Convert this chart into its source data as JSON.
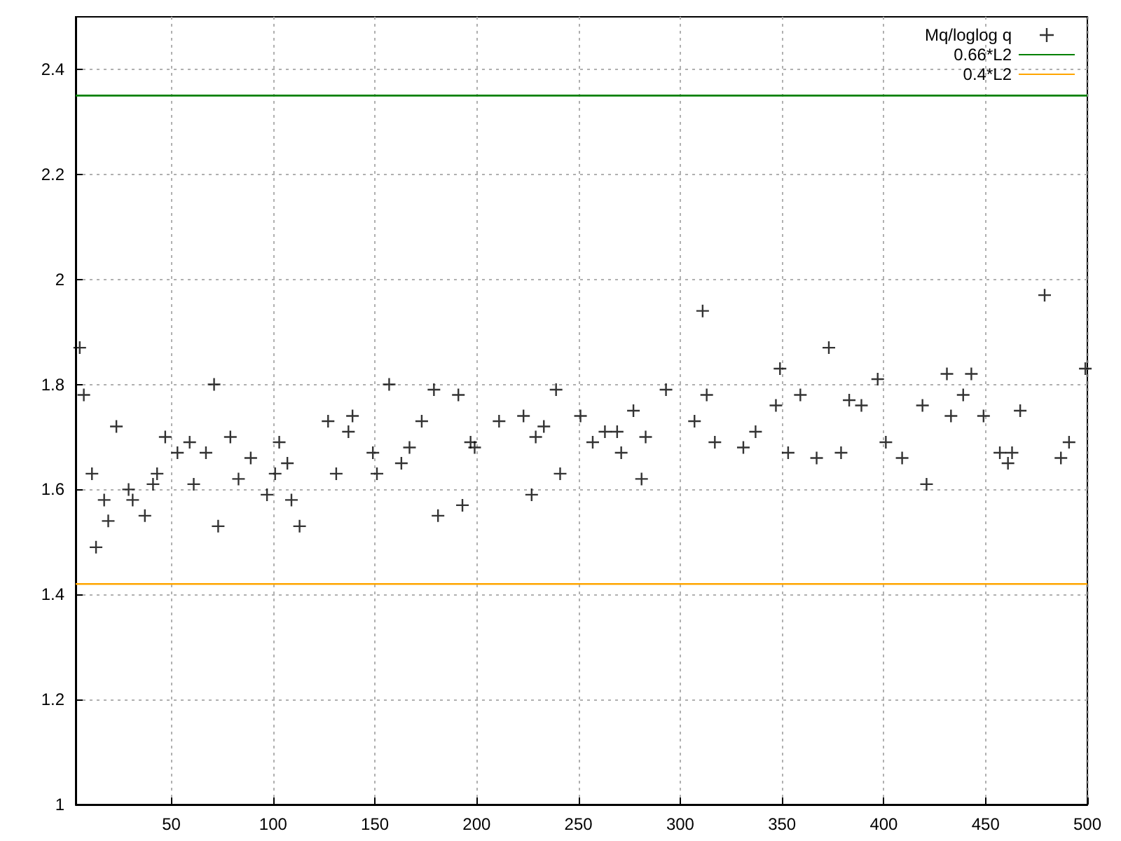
{
  "chart_data": {
    "type": "scatter",
    "xlim": [
      3,
      500
    ],
    "xticks": [
      50,
      100,
      150,
      200,
      250,
      300,
      350,
      400,
      450,
      500
    ],
    "ylim": [
      1,
      2.5
    ],
    "yticks": [
      1,
      1.2,
      1.4,
      1.6,
      1.8,
      2,
      2.2,
      2.4
    ],
    "grid": true,
    "legend": "top right",
    "series": [
      {
        "name": "Mq/loglog q",
        "marker": "cross",
        "color": "#000000",
        "x": [
          5,
          7,
          11,
          13,
          17,
          19,
          23,
          29,
          31,
          37,
          41,
          43,
          47,
          53,
          59,
          61,
          67,
          71,
          73,
          79,
          83,
          89,
          97,
          101,
          103,
          107,
          109,
          113,
          127,
          131,
          137,
          139,
          149,
          151,
          157,
          163,
          167,
          173,
          179,
          181,
          191,
          193,
          197,
          199,
          211,
          223,
          227,
          229,
          233,
          239,
          241,
          251,
          257,
          263,
          269,
          271,
          277,
          281,
          283,
          293,
          307,
          311,
          313,
          317,
          331,
          337,
          347,
          349,
          353,
          359,
          367,
          373,
          379,
          383,
          389,
          397,
          401,
          409,
          419,
          421,
          431,
          433,
          439,
          443,
          449,
          457,
          461,
          463,
          467,
          479,
          487,
          491,
          499
        ],
        "values": [
          1.87,
          1.78,
          1.63,
          1.49,
          1.58,
          1.54,
          1.72,
          1.6,
          1.58,
          1.55,
          1.61,
          1.63,
          1.7,
          1.67,
          1.69,
          1.61,
          1.67,
          1.8,
          1.53,
          1.7,
          1.62,
          1.66,
          1.59,
          1.63,
          1.69,
          1.65,
          1.58,
          1.53,
          1.73,
          1.63,
          1.71,
          1.74,
          1.67,
          1.63,
          1.8,
          1.65,
          1.68,
          1.73,
          1.79,
          1.55,
          1.78,
          1.57,
          1.69,
          1.68,
          1.73,
          1.74,
          1.59,
          1.7,
          1.72,
          1.79,
          1.63,
          1.74,
          1.69,
          1.71,
          1.71,
          1.67,
          1.75,
          1.62,
          1.7,
          1.79,
          1.73,
          1.94,
          1.78,
          1.69,
          1.68,
          1.71,
          1.76,
          1.83,
          1.67,
          1.78,
          1.66,
          1.87,
          1.67,
          1.77,
          1.76,
          1.81,
          1.69,
          1.66,
          1.76,
          1.61,
          1.82,
          1.74,
          1.78,
          1.82,
          1.74,
          1.67,
          1.65,
          1.67,
          1.75,
          1.97,
          1.66,
          1.69,
          1.83
        ]
      },
      {
        "name": "0.66*L2",
        "type": "line",
        "marker": "none",
        "line_style": "solid",
        "color": "#008000",
        "x": [
          3,
          500
        ],
        "values": [
          2.35,
          2.35
        ]
      },
      {
        "name": "0.4*L2",
        "type": "line",
        "marker": "none",
        "line_style": "solid",
        "color": "#ffa500",
        "x": [
          3,
          500
        ],
        "values": [
          1.42,
          1.42
        ]
      }
    ]
  }
}
